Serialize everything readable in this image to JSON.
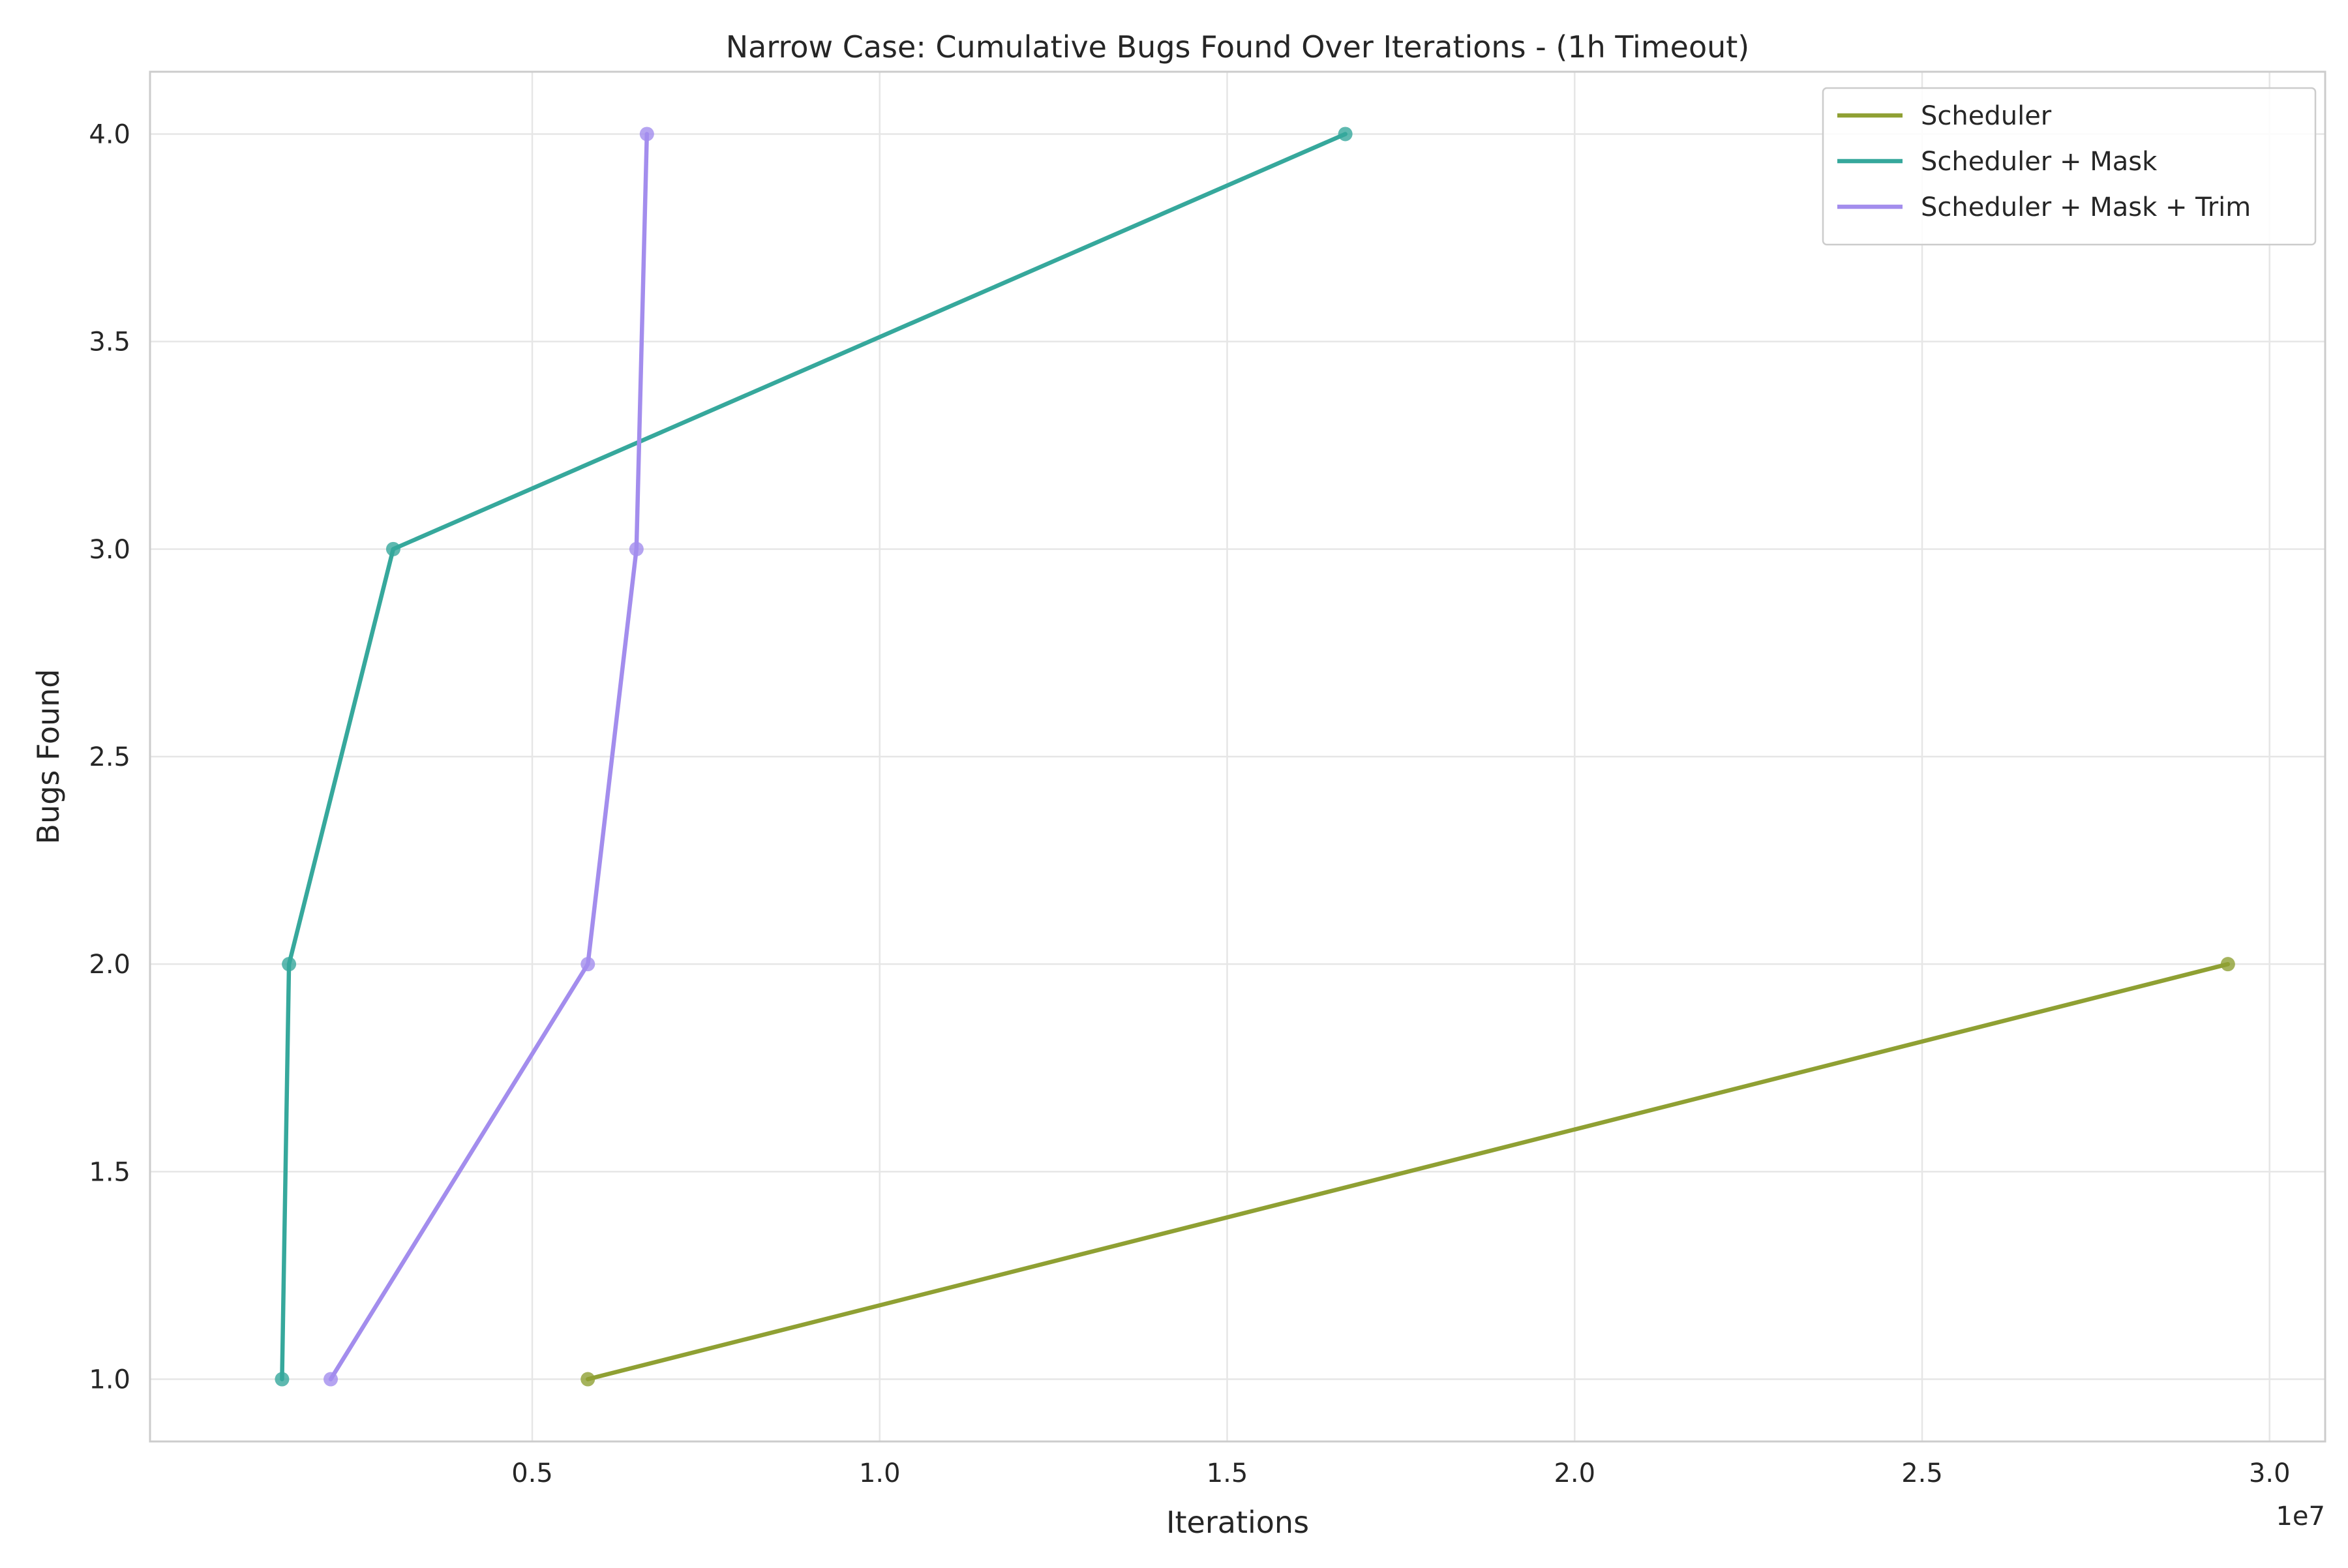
{
  "chart_data": {
    "type": "line",
    "title": "Narrow Case: Cumulative Bugs Found Over Iterations - (1h Timeout)",
    "xlabel": "Iterations",
    "ylabel": "Bugs Found",
    "x_offset_label": "1e7",
    "xlim": [
      -500000,
      30800000
    ],
    "ylim": [
      0.85,
      4.15
    ],
    "x_ticks": [
      5000000,
      10000000,
      15000000,
      20000000,
      25000000,
      30000000
    ],
    "x_tick_labels": [
      "0.5",
      "1.0",
      "1.5",
      "2.0",
      "2.5",
      "3.0"
    ],
    "y_ticks": [
      1.0,
      1.5,
      2.0,
      2.5,
      3.0,
      3.5,
      4.0
    ],
    "y_tick_labels": [
      "1.0",
      "1.5",
      "2.0",
      "2.5",
      "3.0",
      "3.5",
      "4.0"
    ],
    "grid": true,
    "legend_position": "top-right",
    "series": [
      {
        "name": "Scheduler",
        "color": "#8fa033",
        "x": [
          5800000,
          29400000
        ],
        "y": [
          1,
          2
        ]
      },
      {
        "name": "Scheduler + Mask",
        "color": "#36a89c",
        "x": [
          1400000,
          1500000,
          3000000,
          16700000
        ],
        "y": [
          1,
          2,
          3,
          4
        ]
      },
      {
        "name": "Scheduler + Mask + Trim",
        "color": "#a38ded",
        "x": [
          2100000,
          5800000,
          6500000,
          6650000
        ],
        "y": [
          1,
          2,
          3,
          4
        ]
      }
    ]
  }
}
